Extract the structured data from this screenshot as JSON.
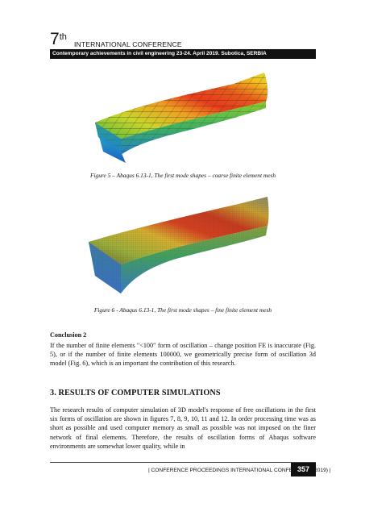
{
  "header": {
    "edition_number": "7",
    "edition_suffix": "th",
    "conference": "INTERNATIONAL CONFERENCE",
    "subtitle": "Contemporary achievements in civil engineering 23-24. April 2019. Subotica, SERBIA"
  },
  "figures": [
    {
      "caption": "Figure 5 – Abaqus 6.13-1, The first mode shapes – coarse finite element mesh"
    },
    {
      "caption": "Figure 6 - Abaqus 6.13-1, The first mode shapes – fine finite element mesh"
    }
  ],
  "conclusion": {
    "title": "Conclusion 2",
    "text": "If the number of finite elements \"<100\" form of oscillation – change position FE is inaccurate (Fig. 5), or if the number of finite elements 100000, we geometrically precise form of oscillation 3d model (Fig. 6), which is an important the contribution of this research."
  },
  "section": {
    "heading": "3.   RESULTS OF COMPUTER SIMULATIONS",
    "text": "The research results of computer simulation of 3D model's response of free oscillations in the first six forms of oscillation are shown in figures 7, 8, 9, 10, 11 and 12. In order processing time was as short as possible and used computer memory as small as possible was not imposed on the finer network of final elements. Therefore, the results of oscillation forms of Abaqus software environments are somewhat lower quality, while in"
  },
  "footer": {
    "text": "| CONFERENCE PROCEEDINGS INTERNATIONAL CONFERENCE (2019) |",
    "page": "357"
  }
}
